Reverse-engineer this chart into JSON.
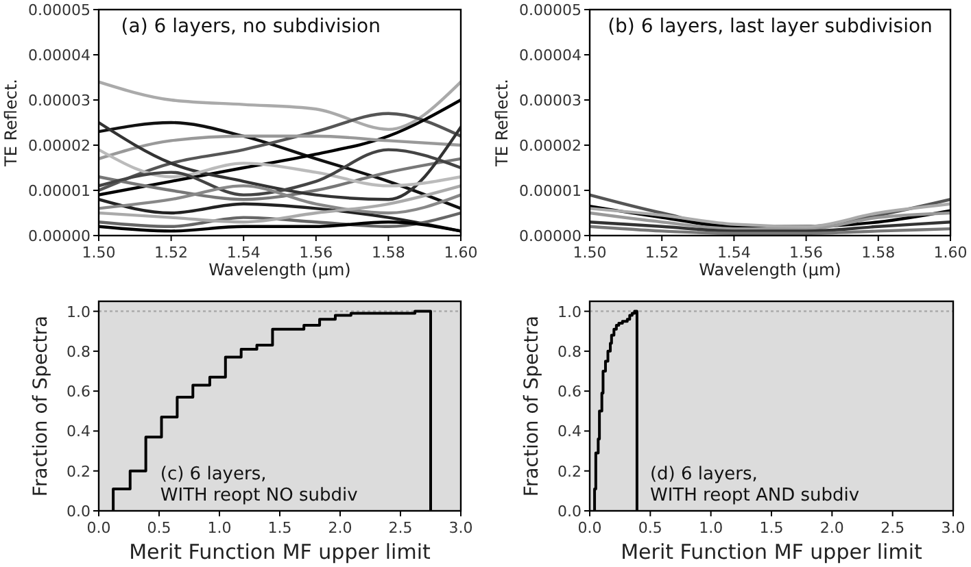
{
  "chart_data": [
    {
      "type": "line",
      "title": "(a) 6 layers, no subdivision",
      "xlabel": "Wavelength (μm)",
      "ylabel": "TE Reflect.",
      "x": [
        1.5,
        1.52,
        1.54,
        1.56,
        1.58,
        1.6
      ],
      "xlim": [
        1.5,
        1.6
      ],
      "xticks": [
        {
          "value": 1.5,
          "label": "1.50"
        },
        {
          "value": 1.52,
          "label": "1.52"
        },
        {
          "value": 1.54,
          "label": "1.54"
        },
        {
          "value": 1.56,
          "label": "1.56"
        },
        {
          "value": 1.58,
          "label": "1.58"
        },
        {
          "value": 1.6,
          "label": "1.60"
        }
      ],
      "ylim": [
        0,
        5e-05
      ],
      "yticks": [
        {
          "value": 0,
          "label": "0.00000"
        },
        {
          "value": 1e-05,
          "label": "0.00001"
        },
        {
          "value": 2e-05,
          "label": "0.00002"
        },
        {
          "value": 3e-05,
          "label": "0.00003"
        },
        {
          "value": 4e-05,
          "label": "0.00004"
        },
        {
          "value": 5e-05,
          "label": "0.00005"
        }
      ],
      "series": [
        {
          "color": "#aaaaaa",
          "values": [
            3.4e-05,
            3e-05,
            2.9e-05,
            2.8e-05,
            2.35e-05,
            3.4e-05
          ]
        },
        {
          "color": "#111111",
          "values": [
            2.3e-05,
            2.5e-05,
            2.2e-05,
            1.7e-05,
            1.2e-05,
            6e-06
          ]
        },
        {
          "color": "#555555",
          "values": [
            1e-05,
            1.6e-05,
            1.9e-05,
            2.3e-05,
            2.7e-05,
            2.2e-05
          ]
        },
        {
          "color": "#000000",
          "values": [
            9e-06,
            1.2e-05,
            1.5e-05,
            1.8e-05,
            2.2e-05,
            3e-05
          ]
        },
        {
          "color": "#999999",
          "values": [
            1.7e-05,
            2.1e-05,
            2.2e-05,
            2.2e-05,
            2.1e-05,
            2e-05
          ]
        },
        {
          "color": "#222222",
          "values": [
            8e-06,
            5e-06,
            7e-06,
            6e-06,
            4e-06,
            1e-06
          ]
        },
        {
          "color": "#777777",
          "values": [
            1.3e-05,
            1e-05,
            8e-06,
            1e-05,
            1.4e-05,
            1.7e-05
          ]
        },
        {
          "color": "#333333",
          "values": [
            2.5e-05,
            1.6e-05,
            1.2e-05,
            9e-06,
            8e-06,
            2.4e-05
          ]
        },
        {
          "color": "#bbbbbb",
          "values": [
            1.9e-05,
            1.3e-05,
            1.6e-05,
            1.4e-05,
            1.1e-05,
            1.3e-05
          ]
        },
        {
          "color": "#444444",
          "values": [
            1.1e-05,
            1.4e-05,
            9e-06,
            1.2e-05,
            1.9e-05,
            1.5e-05
          ]
        },
        {
          "color": "#888888",
          "values": [
            6e-06,
            8e-06,
            1.1e-05,
            7e-06,
            5e-06,
            9e-06
          ]
        },
        {
          "color": "#666666",
          "values": [
            3e-06,
            2e-06,
            4e-06,
            3e-06,
            2e-06,
            5e-06
          ]
        },
        {
          "color": "#aaaaaa",
          "values": [
            5e-06,
            4e-06,
            3e-06,
            5e-06,
            7e-06,
            1.1e-05
          ]
        },
        {
          "color": "#000000",
          "values": [
            2e-06,
            1e-06,
            2e-06,
            2e-06,
            3e-06,
            1e-06
          ]
        }
      ]
    },
    {
      "type": "line",
      "title": "(b) 6 layers, last layer subdivision",
      "xlabel": "Wavelength (μm)",
      "ylabel": "TE Reflect.",
      "x": [
        1.5,
        1.52,
        1.54,
        1.56,
        1.58,
        1.6
      ],
      "xlim": [
        1.5,
        1.6
      ],
      "xticks": [
        {
          "value": 1.5,
          "label": "1.50"
        },
        {
          "value": 1.52,
          "label": "1.52"
        },
        {
          "value": 1.54,
          "label": "1.54"
        },
        {
          "value": 1.56,
          "label": "1.56"
        },
        {
          "value": 1.58,
          "label": "1.58"
        },
        {
          "value": 1.6,
          "label": "1.60"
        }
      ],
      "ylim": [
        0,
        5e-05
      ],
      "yticks": [
        {
          "value": 0,
          "label": "0.00000"
        },
        {
          "value": 1e-05,
          "label": "0.00001"
        },
        {
          "value": 2e-05,
          "label": "0.00002"
        },
        {
          "value": 3e-05,
          "label": "0.00003"
        },
        {
          "value": 4e-05,
          "label": "0.00004"
        },
        {
          "value": 5e-05,
          "label": "0.00005"
        }
      ],
      "series": [
        {
          "color": "#555555",
          "values": [
            9e-06,
            5e-06,
            2e-06,
            2e-06,
            4.5e-06,
            8e-06
          ]
        },
        {
          "color": "#000000",
          "values": [
            6.5e-06,
            4e-06,
            2e-06,
            2e-06,
            3e-06,
            5.5e-06
          ]
        },
        {
          "color": "#999999",
          "values": [
            5e-06,
            3e-06,
            1.5e-06,
            1.5e-06,
            4e-06,
            5e-06
          ]
        },
        {
          "color": "#333333",
          "values": [
            3e-06,
            2e-06,
            1e-06,
            1e-06,
            2e-06,
            3e-06
          ]
        },
        {
          "color": "#777777",
          "values": [
            2e-06,
            1e-06,
            5e-07,
            5e-07,
            1e-06,
            1.5e-06
          ]
        },
        {
          "color": "#aaaaaa",
          "values": [
            6e-06,
            4.5e-06,
            2.5e-06,
            2e-06,
            5e-06,
            7e-06
          ]
        }
      ]
    },
    {
      "type": "step",
      "title": "(c) 6 layers,\nWITH reopt NO subdiv",
      "xlabel": "Merit Function MF upper limit",
      "ylabel": "Fraction of Spectra",
      "xlim": [
        0,
        3
      ],
      "xticks": [
        {
          "value": 0,
          "label": "0.0"
        },
        {
          "value": 0.5,
          "label": "0.5"
        },
        {
          "value": 1,
          "label": "1.0"
        },
        {
          "value": 1.5,
          "label": "1.5"
        },
        {
          "value": 2,
          "label": "2.0"
        },
        {
          "value": 2.5,
          "label": "2.5"
        },
        {
          "value": 3,
          "label": "3.0"
        }
      ],
      "ylim": [
        0,
        1.05
      ],
      "yticks": [
        {
          "value": 0,
          "label": "0.0"
        },
        {
          "value": 0.2,
          "label": "0.2"
        },
        {
          "value": 0.4,
          "label": "0.4"
        },
        {
          "value": 0.6,
          "label": "0.6"
        },
        {
          "value": 0.8,
          "label": "0.8"
        },
        {
          "value": 1,
          "label": "1.0"
        }
      ],
      "ref_lines": [
        {
          "axis": "y",
          "value": 1,
          "color": "#aaaaaa",
          "line_style": "dotted"
        }
      ],
      "series": [
        {
          "color": "#000000",
          "x": [
            0.12,
            0.12,
            0.26,
            0.39,
            0.52,
            0.65,
            0.78,
            0.92,
            1.05,
            1.18,
            1.31,
            1.44,
            1.7,
            1.83,
            1.96,
            2.09,
            2.62,
            2.75
          ],
          "values": [
            0,
            0.11,
            0.2,
            0.37,
            0.47,
            0.57,
            0.63,
            0.67,
            0.77,
            0.81,
            0.83,
            0.91,
            0.93,
            0.96,
            0.98,
            0.99,
            1.0,
            0
          ]
        }
      ]
    },
    {
      "type": "step",
      "title": "(d) 6 layers,\nWITH reopt AND subdiv",
      "xlabel": "Merit Function MF upper limit",
      "ylabel": "Fraction of Spectra",
      "xlim": [
        0,
        3
      ],
      "xticks": [
        {
          "value": 0,
          "label": "0.0"
        },
        {
          "value": 0.5,
          "label": "0.5"
        },
        {
          "value": 1,
          "label": "1.0"
        },
        {
          "value": 1.5,
          "label": "1.5"
        },
        {
          "value": 2,
          "label": "2.0"
        },
        {
          "value": 2.5,
          "label": "2.5"
        },
        {
          "value": 3,
          "label": "3.0"
        }
      ],
      "ylim": [
        0,
        1.05
      ],
      "yticks": [
        {
          "value": 0,
          "label": "0.0"
        },
        {
          "value": 0.2,
          "label": "0.2"
        },
        {
          "value": 0.4,
          "label": "0.4"
        },
        {
          "value": 0.6,
          "label": "0.6"
        },
        {
          "value": 0.8,
          "label": "0.8"
        },
        {
          "value": 1,
          "label": "1.0"
        }
      ],
      "ref_lines": [
        {
          "axis": "y",
          "value": 1,
          "color": "#aaaaaa",
          "line_style": "dotted"
        }
      ],
      "series": [
        {
          "color": "#000000",
          "x": [
            0.04,
            0.04,
            0.05,
            0.07,
            0.08,
            0.1,
            0.11,
            0.13,
            0.15,
            0.17,
            0.18,
            0.2,
            0.22,
            0.24,
            0.27,
            0.31,
            0.33,
            0.35,
            0.37,
            0.39
          ],
          "values": [
            0,
            0.11,
            0.29,
            0.36,
            0.5,
            0.59,
            0.7,
            0.75,
            0.8,
            0.84,
            0.88,
            0.91,
            0.93,
            0.94,
            0.95,
            0.96,
            0.98,
            0.99,
            1.0,
            0
          ]
        }
      ]
    }
  ]
}
